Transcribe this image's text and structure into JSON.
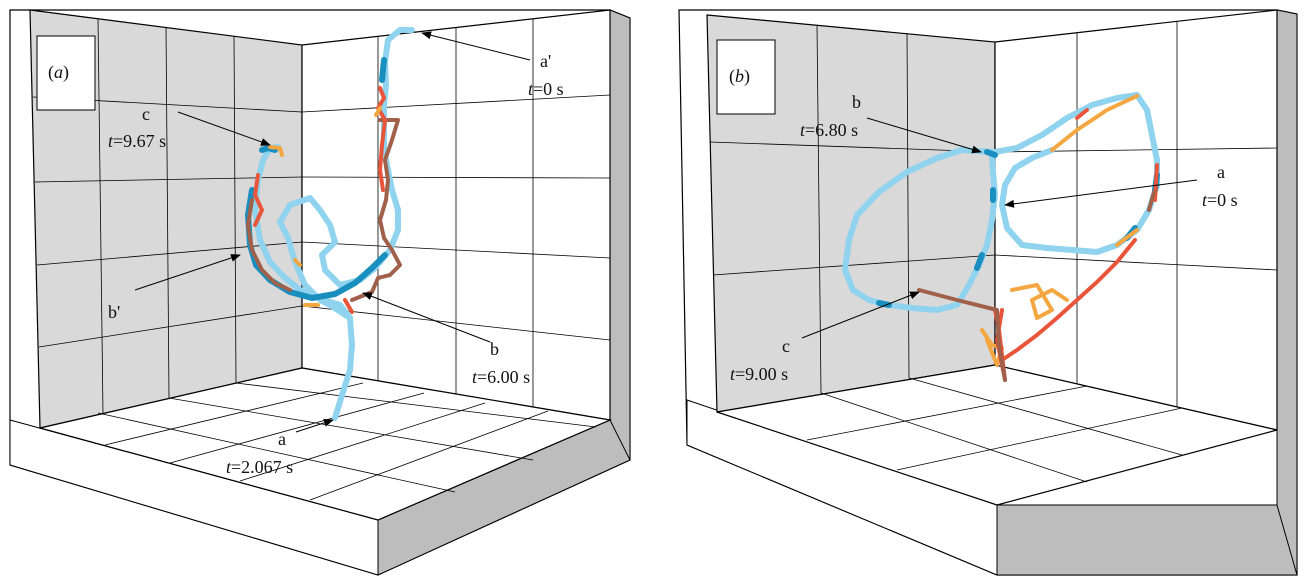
{
  "panels": [
    {
      "label_prefix": "(",
      "label_letter": "a",
      "label_suffix": ")",
      "annotations": [
        {
          "id": "a-prime",
          "name": "a'",
          "t_var": "t",
          "t_value": "=0 s"
        },
        {
          "id": "c",
          "name": "c",
          "t_var": "t",
          "t_value": "=9.67 s"
        },
        {
          "id": "b-prime",
          "name": "b'"
        },
        {
          "id": "b",
          "name": "b",
          "t_var": "t",
          "t_value": "=6.00 s"
        },
        {
          "id": "a",
          "name": "a",
          "t_var": "t",
          "t_value": "=2.067 s"
        }
      ]
    },
    {
      "label_prefix": "(",
      "label_letter": "b",
      "label_suffix": ")",
      "annotations": [
        {
          "id": "b",
          "name": "b",
          "t_var": "t",
          "t_value": "=6.80 s"
        },
        {
          "id": "a",
          "name": "a",
          "t_var": "t",
          "t_value": "=0 s"
        },
        {
          "id": "c",
          "name": "c",
          "t_var": "t",
          "t_value": "=9.00 s"
        }
      ]
    }
  ],
  "colors": {
    "light_blue": "#8fd3ef",
    "dark_blue": "#1a8fbf",
    "orange": "#f4a640",
    "red": "#e8553a",
    "brown": "#a0604a",
    "wall_gray": "#d9d9d9",
    "frame_gray": "#bdbdbd"
  }
}
